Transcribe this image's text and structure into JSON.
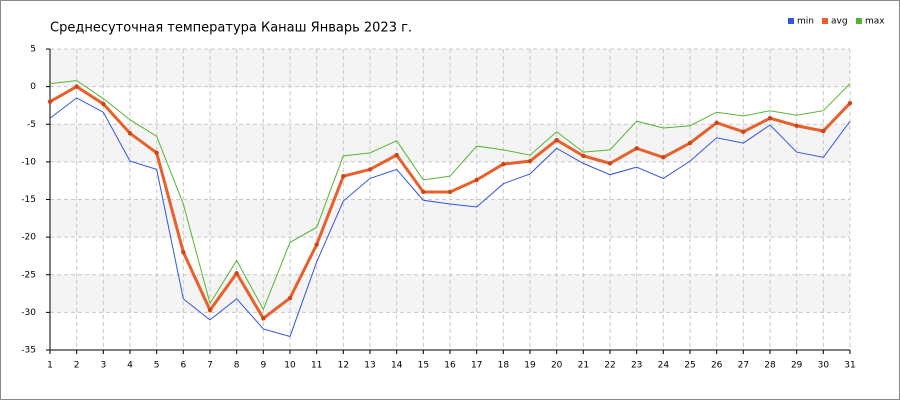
{
  "chart_data": {
    "type": "line",
    "title": "Среднесуточная температура Канаш  Январь 2023 г.",
    "x": [
      1,
      2,
      3,
      4,
      5,
      6,
      7,
      8,
      9,
      10,
      11,
      12,
      13,
      14,
      15,
      16,
      17,
      18,
      19,
      20,
      21,
      22,
      23,
      24,
      25,
      26,
      27,
      28,
      29,
      30,
      31
    ],
    "xlim": [
      1,
      31
    ],
    "xticks": [
      1,
      2,
      3,
      4,
      5,
      6,
      7,
      8,
      9,
      10,
      11,
      12,
      13,
      14,
      15,
      16,
      17,
      18,
      19,
      20,
      21,
      22,
      23,
      24,
      25,
      26,
      27,
      28,
      29,
      30,
      31
    ],
    "ylim": [
      -35,
      5
    ],
    "yticks": [
      -35,
      -30,
      -25,
      -20,
      -15,
      -10,
      -5,
      0,
      5
    ],
    "grid": true,
    "legend": "top-right",
    "series": [
      {
        "name": "min",
        "color": "#3355dd",
        "values": [
          -4.2,
          -1.5,
          -3.4,
          -9.9,
          -11,
          -28.2,
          -31,
          -28.2,
          -32.2,
          -33.2,
          -23.3,
          -15.2,
          -12.2,
          -11,
          -15.1,
          -15.6,
          -16,
          -12.9,
          -11.6,
          -8.2,
          -10.2,
          -11.7,
          -10.7,
          -12.2,
          -9.9,
          -6.8,
          -7.5,
          -5.1,
          -8.7,
          -9.4,
          -4.6
        ]
      },
      {
        "name": "avg",
        "color": "#e8602c",
        "values": [
          -2,
          0,
          -2.3,
          -6.2,
          -8.8,
          -22,
          -29.7,
          -24.8,
          -30.8,
          -28.1,
          -21,
          -11.9,
          -11,
          -9.1,
          -14,
          -14,
          -12.4,
          -10.3,
          -9.9,
          -7.1,
          -9.2,
          -10.2,
          -8.2,
          -9.4,
          -7.5,
          -4.8,
          -6,
          -4.2,
          -5.2,
          -5.9,
          -2.2
        ]
      },
      {
        "name": "max",
        "color": "#55b533",
        "values": [
          0.4,
          0.8,
          -1.6,
          -4.4,
          -6.6,
          -15.6,
          -28.8,
          -23.1,
          -29.6,
          -20.7,
          -18.7,
          -9.2,
          -8.8,
          -7.2,
          -12.4,
          -11.9,
          -7.9,
          -8.4,
          -9.1,
          -6,
          -8.7,
          -8.4,
          -4.6,
          -5.5,
          -5.2,
          -3.4,
          -3.9,
          -3.2,
          -3.8,
          -3.2,
          0.4
        ]
      }
    ]
  }
}
